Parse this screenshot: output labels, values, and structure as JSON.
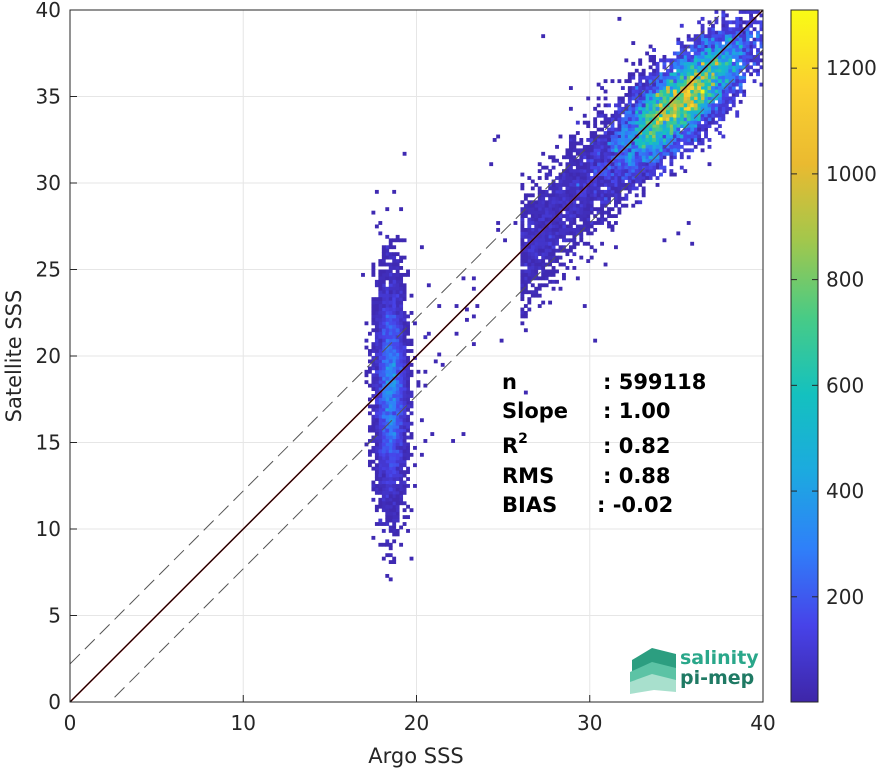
{
  "chart_data": {
    "type": "heatmap",
    "subtype": "2d-density-scatter",
    "xlabel": "Argo SSS",
    "ylabel": "Satellite SSS",
    "xlim": [
      0,
      40
    ],
    "ylim": [
      0,
      40
    ],
    "xticks": [
      "0",
      "10",
      "20",
      "30",
      "40"
    ],
    "yticks": [
      "0",
      "5",
      "10",
      "15",
      "20",
      "25",
      "30",
      "35",
      "40"
    ],
    "grid": true,
    "lines": [
      {
        "kind": "regression",
        "color": "#b22222",
        "slope": 1.0,
        "intercept": 0
      },
      {
        "kind": "one-to-one",
        "color": "#000000",
        "slope": 1.0,
        "intercept": 0
      },
      {
        "kind": "upper-bound",
        "style": "dashed",
        "color": "#555555",
        "slope": 1.0,
        "intercept": 2.2
      },
      {
        "kind": "lower-bound",
        "style": "dashed",
        "color": "#555555",
        "slope": 1.0,
        "intercept": -2.3
      }
    ],
    "density_clusters": [
      {
        "center_x": 35.3,
        "center_y": 34.8,
        "spread_along": 2.6,
        "spread_across": 1.3,
        "peak_count": 1300
      },
      {
        "center_x": 18.5,
        "center_y": 18.0,
        "spread_x": 0.45,
        "spread_y": 3.2,
        "peak_count": 120
      }
    ],
    "colorbar": {
      "ticks": [
        "200",
        "400",
        "600",
        "800",
        "1000",
        "1200"
      ],
      "tick_values": [
        200,
        400,
        600,
        800,
        1000,
        1200
      ],
      "min": 1,
      "max": 1310,
      "colormap": [
        "#3e26a8",
        "#4743e9",
        "#2f80f9",
        "#1caadf",
        "#14c1bf",
        "#48cb86",
        "#a2c74c",
        "#eaba30",
        "#fbd12f",
        "#f9fb15"
      ]
    },
    "stats": [
      {
        "label": "n",
        "value": ": 599118"
      },
      {
        "label": "Slope",
        "value": ": 1.00"
      },
      {
        "label": "R",
        "sup": "2",
        "value": ": 0.82"
      },
      {
        "label": "RMS",
        "value": ": 0.88"
      },
      {
        "label": "BIAS",
        "value": ": -0.02"
      }
    ]
  },
  "logo": {
    "line1": "salinity",
    "line2": "pi-mep",
    "colors": [
      "#2aa78a",
      "#1f7a64"
    ]
  }
}
